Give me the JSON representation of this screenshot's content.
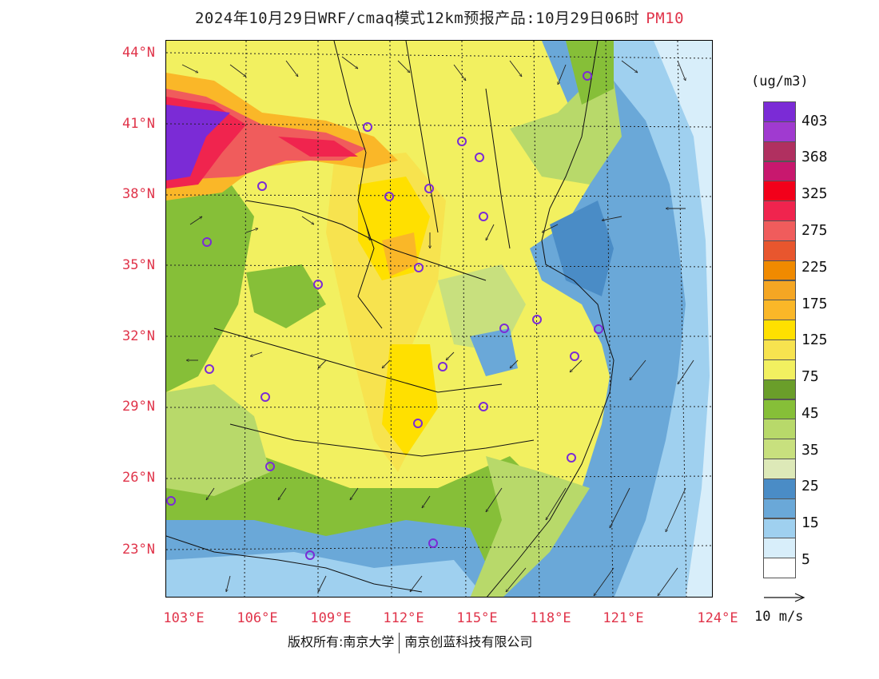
{
  "title": {
    "main": "2024年10月29日WRF/cmaq模式12km预报产品:10月29日06时",
    "pollutant": "PM10"
  },
  "axes": {
    "lat_labels": [
      "44°N",
      "41°N",
      "38°N",
      "35°N",
      "32°N",
      "29°N",
      "26°N",
      "23°N"
    ],
    "lon_labels": [
      "103°E",
      "106°E",
      "109°E",
      "112°E",
      "115°E",
      "118°E",
      "121°E",
      "124°E"
    ]
  },
  "legend": {
    "unit": "(ug/m3)",
    "colors": [
      "#7b2bd6",
      "#a03ad0",
      "#b03060",
      "#c8186e",
      "#f2001a",
      "#f0244e",
      "#f05c5c",
      "#e8562e",
      "#f08a00",
      "#f5a623",
      "#fab728",
      "#ffe000",
      "#f7e34f",
      "#f2f060",
      "#6a9e2a",
      "#86bf38",
      "#b8d96a",
      "#c8e07e",
      "#dde9b8",
      "#4a8cc6",
      "#6aa8d8",
      "#9fd0ef",
      "#d8eefa",
      "#ffffff"
    ],
    "labels": [
      "403",
      "368",
      "325",
      "275",
      "225",
      "175",
      "125",
      "75",
      "45",
      "35",
      "25",
      "15",
      "5"
    ]
  },
  "wind_reference": {
    "label": "10 m/s"
  },
  "footer": {
    "copyright": "版权所有:南京大学",
    "company": "南京创蓝科技有限公司"
  }
}
